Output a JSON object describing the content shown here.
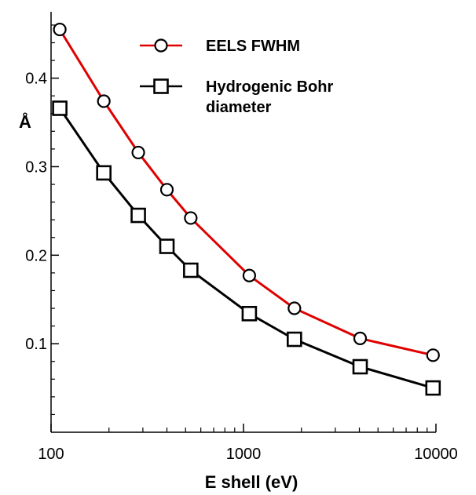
{
  "chart_data": {
    "type": "line",
    "xlabel": "E shell (eV)",
    "ylabel": "Å",
    "x_scale": "log",
    "xlim": [
      100,
      10000
    ],
    "ylim": [
      0,
      0.475
    ],
    "x_ticks": [
      100,
      1000,
      10000
    ],
    "x_tick_labels": [
      "100",
      "1000",
      "10000"
    ],
    "y_ticks": [
      0.1,
      0.2,
      0.3,
      0.4
    ],
    "y_tick_labels": [
      "0.1",
      "0.2",
      "0.3",
      "0.4"
    ],
    "grid": false,
    "legend_position": "top-right",
    "legend_lines": [
      [
        "EELS FWHM"
      ],
      [
        "Hydrogenic Bohr",
        "diameter"
      ]
    ],
    "series": [
      {
        "name": "EELS FWHM",
        "color": "#e00000",
        "marker": "circle",
        "x": [
          111,
          188,
          284,
          400,
          532,
          1072,
          1839,
          4038,
          9659
        ],
        "y": [
          0.455,
          0.374,
          0.316,
          0.274,
          0.242,
          0.177,
          0.14,
          0.106,
          0.087
        ]
      },
      {
        "name": "Hydrogenic Bohr diameter",
        "color": "#000000",
        "marker": "square",
        "x": [
          111,
          188,
          284,
          400,
          532,
          1072,
          1839,
          4038,
          9659
        ],
        "y": [
          0.366,
          0.293,
          0.245,
          0.21,
          0.183,
          0.134,
          0.105,
          0.074,
          0.05
        ]
      }
    ]
  }
}
